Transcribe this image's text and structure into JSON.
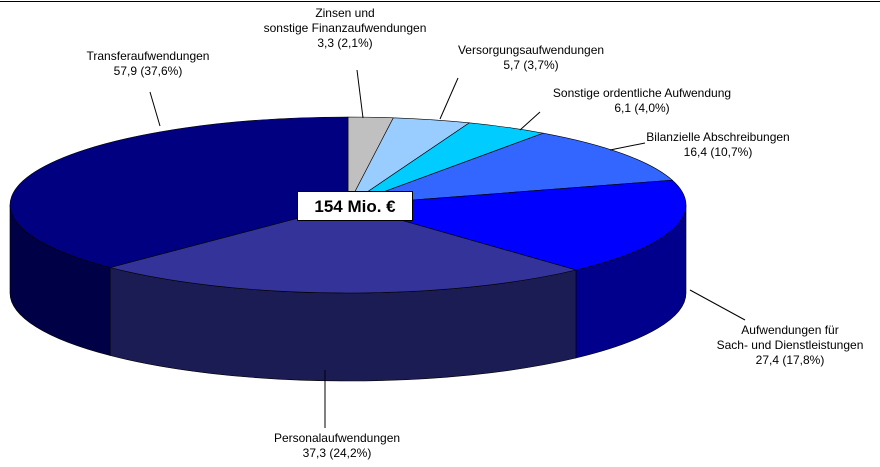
{
  "chart_data": {
    "type": "pie3d",
    "annotation": "154 Mio. €",
    "categories": [
      "Zinsen und\nsonstige Finanzaufwendungen",
      "Versorgungsaufwendungen",
      "Sonstige ordentliche Aufwendung",
      "Bilanzielle Abschreibungen",
      "Aufwendungen für\nSach- und Dienstleistungen",
      "Personalaufwendungen",
      "Transferaufwendungen"
    ],
    "values": [
      3.3,
      5.7,
      6.1,
      16.4,
      27.4,
      37.3,
      57.9
    ],
    "value_labels": [
      "3,3 (2,1%)",
      "5,7 (3,7%)",
      "6,1 (4,0%)",
      "16,4 (10,7%)",
      "27,4 (17,8%)",
      "37,3 (24,2%)",
      "57,9 (37,6%)"
    ],
    "colors": [
      "#c0c0c0",
      "#99ccff",
      "#00ccff",
      "#3366ff",
      "#0000ff",
      "#333399",
      "#000080"
    ]
  }
}
